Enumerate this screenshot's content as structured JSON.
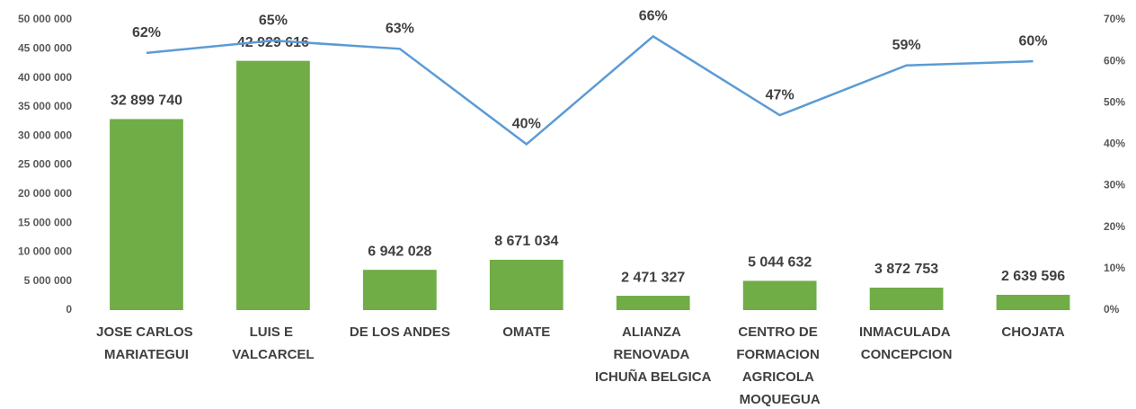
{
  "chart_data": {
    "type": "bar_line",
    "categories": [
      "JOSE CARLOS MARIATEGUI",
      "LUIS E VALCARCEL",
      "DE LOS ANDES",
      "OMATE",
      "ALIANZA RENOVADA ICHUÑA BELGICA",
      "CENTRO DE FORMACION AGRICOLA MOQUEGUA",
      "INMACULADA CONCEPCION",
      "CHOJATA"
    ],
    "series": [
      {
        "type": "bar",
        "color": "#70ad47",
        "values": [
          32899740,
          42929616,
          6942028,
          8671034,
          2471327,
          5044632,
          3872753,
          2639596
        ],
        "value_labels": [
          "32 899 740",
          "42 929 616",
          "6 942 028",
          "8 671 034",
          "2 471 327",
          "5 044 632",
          "3 872 753",
          "2 639 596"
        ]
      },
      {
        "type": "line",
        "axis": "y2",
        "color": "#5b9bd5",
        "values": [
          62,
          65,
          63,
          40,
          66,
          47,
          59,
          60
        ],
        "value_labels": [
          "62%",
          "65%",
          "63%",
          "40%",
          "66%",
          "47%",
          "59%",
          "60%"
        ]
      }
    ],
    "ylim": [
      0,
      50000000
    ],
    "yticks": [
      {
        "value": 0,
        "label": "0"
      },
      {
        "value": 5000000,
        "label": "5 000 000"
      },
      {
        "value": 10000000,
        "label": "10 000 000"
      },
      {
        "value": 15000000,
        "label": "15 000 000"
      },
      {
        "value": 20000000,
        "label": "20 000 000"
      },
      {
        "value": 25000000,
        "label": "25 000 000"
      },
      {
        "value": 30000000,
        "label": "30 000 000"
      },
      {
        "value": 35000000,
        "label": "35 000 000"
      },
      {
        "value": 40000000,
        "label": "40 000 000"
      },
      {
        "value": 45000000,
        "label": "45 000 000"
      },
      {
        "value": 50000000,
        "label": "50 000 000"
      }
    ],
    "y2lim": [
      0,
      70
    ],
    "y2ticks": [
      {
        "value": 0,
        "label": "0%"
      },
      {
        "value": 10,
        "label": "10%"
      },
      {
        "value": 20,
        "label": "20%"
      },
      {
        "value": 30,
        "label": "30%"
      },
      {
        "value": 40,
        "label": "40%"
      },
      {
        "value": 50,
        "label": "50%"
      },
      {
        "value": 60,
        "label": "60%"
      },
      {
        "value": 70,
        "label": "70%"
      }
    ],
    "grid": false
  }
}
